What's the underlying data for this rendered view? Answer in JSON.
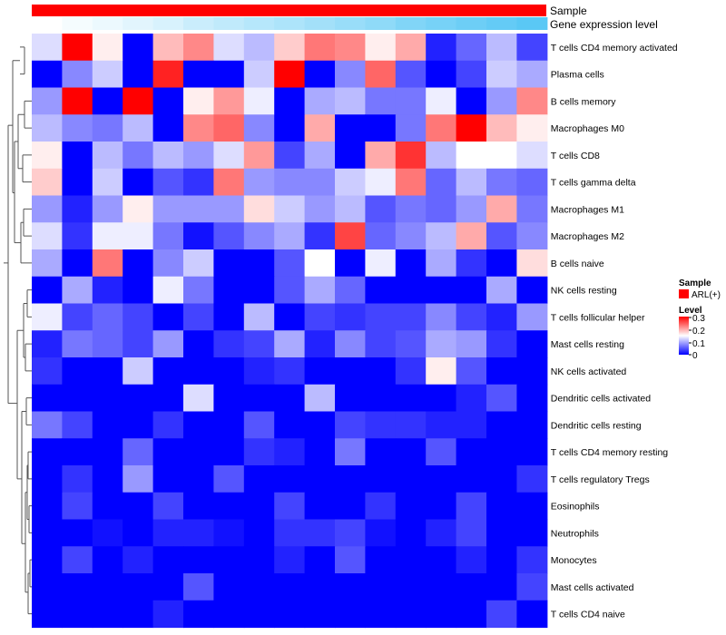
{
  "chart_data": {
    "type": "heatmap",
    "annotation": {
      "sample_title": "Sample",
      "sample_color": "#ff0000",
      "expression_title": "Gene expression level",
      "expression_levels": [
        0.0,
        0.02,
        0.04,
        0.06,
        0.08,
        0.11,
        0.13,
        0.15,
        0.17,
        0.19,
        0.21,
        0.23,
        0.26,
        0.28,
        0.3,
        0.32,
        0.34
      ]
    },
    "rows": [
      "T cells CD4 memory activated",
      "Plasma cells",
      "B cells memory",
      "Macrophages M0",
      "T cells CD8",
      "T cells gamma delta",
      "Macrophages M1",
      "Macrophages M2",
      "B cells naive",
      "NK cells resting",
      "T cells follicular helper",
      "Mast cells resting",
      "NK cells activated",
      "Dendritic cells activated",
      "Dendritic cells resting",
      "T cells CD4 memory resting",
      "T cells regulatory  Tregs",
      "Eosinophils",
      "Neutrophils",
      "Monocytes",
      "Mast cells activated",
      "T cells CD4 naive"
    ],
    "values": [
      [
        0.13,
        0.3,
        0.16,
        0.0,
        0.19,
        0.22,
        0.13,
        0.11,
        0.18,
        0.23,
        0.22,
        0.16,
        0.2,
        0.02,
        0.06,
        0.11,
        0.04
      ],
      [
        0.0,
        0.08,
        0.12,
        0.0,
        0.28,
        0.0,
        0.0,
        0.12,
        0.3,
        0.0,
        0.08,
        0.24,
        0.05,
        0.0,
        0.04,
        0.12,
        0.1
      ],
      [
        0.09,
        0.3,
        0.0,
        0.3,
        0.0,
        0.16,
        0.21,
        0.14,
        0.0,
        0.1,
        0.11,
        0.07,
        0.07,
        0.14,
        0.0,
        0.09,
        0.22
      ],
      [
        0.11,
        0.08,
        0.07,
        0.11,
        0.0,
        0.22,
        0.24,
        0.08,
        0.0,
        0.2,
        0.0,
        0.0,
        0.07,
        0.23,
        0.3,
        0.19,
        0.16
      ],
      [
        0.16,
        0.0,
        0.11,
        0.07,
        0.11,
        0.09,
        0.13,
        0.21,
        0.04,
        0.1,
        0.0,
        0.2,
        0.27,
        0.11,
        0.15,
        0.15,
        0.13
      ],
      [
        0.18,
        0.0,
        0.12,
        0.0,
        0.05,
        0.03,
        0.23,
        0.09,
        0.08,
        0.08,
        0.12,
        0.14,
        0.23,
        0.06,
        0.11,
        0.07,
        0.06
      ],
      [
        0.09,
        0.02,
        0.09,
        0.16,
        0.09,
        0.09,
        0.09,
        0.17,
        0.12,
        0.09,
        0.11,
        0.05,
        0.07,
        0.06,
        0.09,
        0.2,
        0.07
      ],
      [
        0.13,
        0.03,
        0.14,
        0.14,
        0.07,
        0.01,
        0.05,
        0.08,
        0.1,
        0.03,
        0.26,
        0.06,
        0.08,
        0.11,
        0.2,
        0.05,
        0.08
      ],
      [
        0.1,
        0.0,
        0.23,
        0.0,
        0.08,
        0.12,
        0.0,
        0.0,
        0.05,
        0.15,
        0.0,
        0.14,
        0.0,
        0.1,
        0.03,
        0.0,
        0.17
      ],
      [
        0.0,
        0.1,
        0.02,
        0.0,
        0.14,
        0.07,
        0.0,
        0.0,
        0.05,
        0.1,
        0.06,
        0.0,
        0.0,
        0.0,
        0.0,
        0.1,
        0.0
      ],
      [
        0.14,
        0.04,
        0.06,
        0.04,
        0.0,
        0.04,
        0.0,
        0.11,
        0.0,
        0.04,
        0.03,
        0.04,
        0.04,
        0.08,
        0.04,
        0.02,
        0.09
      ],
      [
        0.02,
        0.07,
        0.06,
        0.04,
        0.09,
        0.0,
        0.03,
        0.04,
        0.1,
        0.02,
        0.08,
        0.04,
        0.05,
        0.1,
        0.09,
        0.03,
        0.0
      ],
      [
        0.03,
        0.0,
        0.0,
        0.12,
        0.0,
        0.0,
        0.0,
        0.02,
        0.03,
        0.0,
        0.0,
        0.0,
        0.03,
        0.16,
        0.05,
        0.0,
        0.0
      ],
      [
        0.0,
        0.0,
        0.0,
        0.0,
        0.0,
        0.13,
        0.0,
        0.0,
        0.0,
        0.11,
        0.0,
        0.0,
        0.0,
        0.0,
        0.02,
        0.05,
        0.0
      ],
      [
        0.07,
        0.04,
        0.0,
        0.0,
        0.03,
        0.0,
        0.0,
        0.05,
        0.0,
        0.0,
        0.04,
        0.03,
        0.03,
        0.02,
        0.02,
        0.0,
        0.0
      ],
      [
        0.0,
        0.0,
        0.0,
        0.06,
        0.0,
        0.0,
        0.0,
        0.03,
        0.02,
        0.0,
        0.07,
        0.0,
        0.0,
        0.05,
        0.0,
        0.0,
        0.0
      ],
      [
        0.0,
        0.03,
        0.0,
        0.09,
        0.0,
        0.0,
        0.05,
        0.0,
        0.0,
        0.0,
        0.0,
        0.0,
        0.0,
        0.0,
        0.0,
        0.0,
        0.03
      ],
      [
        0.0,
        0.04,
        0.0,
        0.0,
        0.04,
        0.0,
        0.0,
        0.0,
        0.04,
        0.0,
        0.0,
        0.03,
        0.0,
        0.0,
        0.04,
        0.0,
        0.0
      ],
      [
        0.0,
        0.0,
        0.01,
        0.0,
        0.02,
        0.02,
        0.01,
        0.0,
        0.03,
        0.03,
        0.04,
        0.01,
        0.0,
        0.02,
        0.04,
        0.0,
        0.0
      ],
      [
        0.0,
        0.04,
        0.0,
        0.02,
        0.0,
        0.0,
        0.0,
        0.0,
        0.02,
        0.0,
        0.05,
        0.0,
        0.0,
        0.0,
        0.02,
        0.0,
        0.03
      ],
      [
        0.0,
        0.0,
        0.0,
        0.0,
        0.0,
        0.05,
        0.0,
        0.0,
        0.0,
        0.0,
        0.0,
        0.0,
        0.0,
        0.0,
        0.0,
        0.0,
        0.04
      ],
      [
        0.0,
        0.0,
        0.0,
        0.0,
        0.02,
        0.0,
        0.0,
        0.0,
        0.0,
        0.0,
        0.0,
        0.0,
        0.0,
        0.0,
        0.0,
        0.04,
        0.0
      ]
    ],
    "color_scale": {
      "min": 0,
      "mid": 0.15,
      "max": 0.3,
      "low_color": "#0000ff",
      "mid_color": "#ffffff",
      "high_color": "#ff0000"
    },
    "legend": {
      "sample_title": "Sample",
      "sample_label": "ARL(+)",
      "level_title": "Level",
      "ticks": [
        "0.3",
        "0.2",
        "0.1",
        "0"
      ]
    }
  }
}
